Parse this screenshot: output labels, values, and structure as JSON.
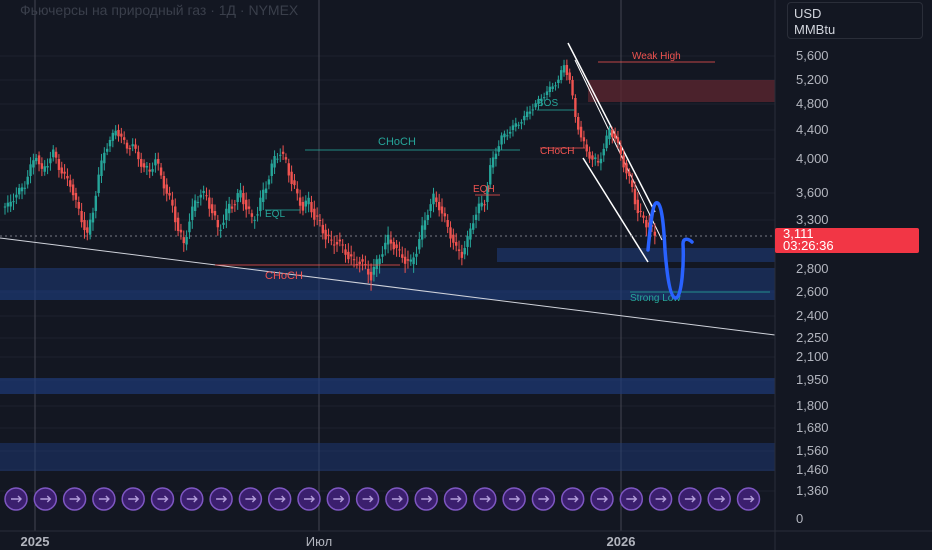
{
  "header": {
    "title": "Фьючерсы на природный газ · 1Д · NYMEX"
  },
  "unit_box": {
    "currency": "USD",
    "unit": "MMBtu"
  },
  "last_price": {
    "value": "3,111",
    "countdown": "03:26:36"
  },
  "colors": {
    "background": "#131722",
    "up": "#26a69a",
    "down": "#ef5350",
    "zone_blue": "#1e3a78",
    "zone_red": "#5a2630",
    "drawing_blue": "#2962ff",
    "price_tag": "#f23645"
  },
  "chart_data": {
    "type": "candlestick",
    "y_scale": "log",
    "y_ticks": [
      "5,600",
      "5,200",
      "4,800",
      "4,400",
      "4,000",
      "3,600",
      "3,300",
      "2,800",
      "2,600",
      "2,400",
      "2,250",
      "2,100",
      "1,950",
      "1,800",
      "1,680",
      "1,560",
      "1,460",
      "1,360",
      "0"
    ],
    "x_ticks": [
      "2025",
      "Июл",
      "2026"
    ],
    "range_x": [
      "2025-01",
      "2026-03"
    ],
    "annotations": [
      "CHoCH",
      "CHoCH",
      "EQL",
      "EQH",
      "BOS",
      "CHoCH",
      "Weak High",
      "Strong Low"
    ],
    "series": [
      {
        "values": [
          3.45,
          3.55,
          3.62,
          3.7,
          3.9,
          4.05,
          3.85,
          3.95,
          4.1,
          3.9,
          3.8,
          3.7,
          3.5,
          3.3,
          3.15,
          3.4,
          3.8,
          4.1,
          4.25,
          4.4,
          4.3,
          4.15,
          4.2,
          4.0,
          3.9,
          3.85,
          4.0,
          3.8,
          3.6,
          3.45,
          3.2,
          3.05,
          3.3,
          3.5,
          3.6,
          3.55,
          3.4,
          3.2,
          3.3,
          3.45,
          3.5,
          3.6,
          3.45,
          3.3,
          3.4,
          3.6,
          3.8,
          4.0,
          4.1,
          3.95,
          3.75,
          3.55,
          3.45,
          3.5,
          3.35,
          3.25,
          3.15,
          3.05,
          3.1,
          3.0,
          2.95,
          2.85,
          2.9,
          2.8,
          2.75,
          2.85,
          3.0,
          3.1,
          3.05,
          2.95,
          2.9,
          2.85,
          3.0,
          3.2,
          3.4,
          3.55,
          3.45,
          3.3,
          3.15,
          3.0,
          2.95,
          3.1,
          3.3,
          3.45,
          3.5,
          3.9,
          4.1,
          4.3,
          4.35,
          4.45,
          4.5,
          4.6,
          4.7,
          4.8,
          4.9,
          5.0,
          5.1,
          5.2,
          5.45,
          5.2,
          4.6,
          4.3,
          4.1,
          4.0,
          3.95,
          4.15,
          4.4,
          4.3,
          4.05,
          3.85,
          3.65,
          3.4,
          3.3,
          3.25,
          3.111
        ]
      }
    ]
  }
}
